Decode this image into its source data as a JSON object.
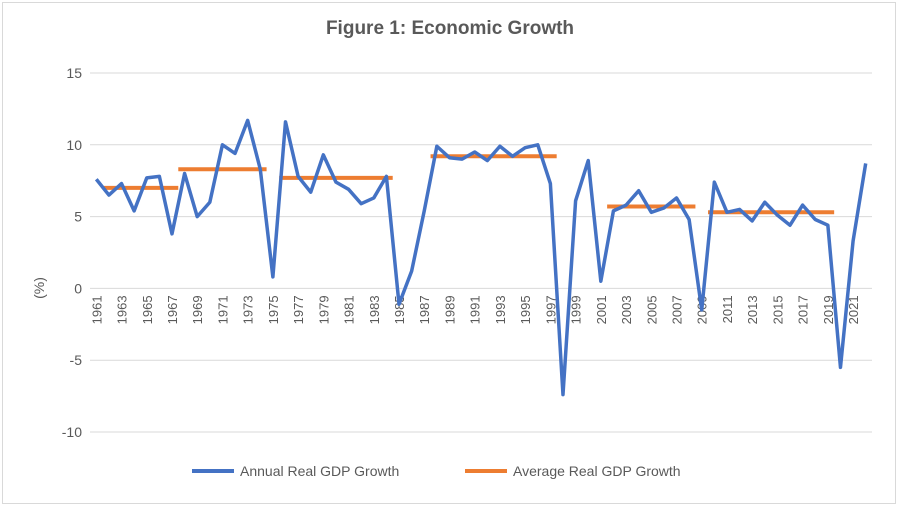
{
  "chart_data": {
    "type": "line",
    "title": "Figure 1: Economic Growth",
    "xlabel": "",
    "ylabel": "(%)",
    "ylim": [
      -10,
      15
    ],
    "yticks": [
      -10,
      -5,
      0,
      5,
      10,
      15
    ],
    "grid": true,
    "legend": "bottom",
    "x": [
      1961,
      1962,
      1963,
      1964,
      1965,
      1966,
      1967,
      1968,
      1969,
      1970,
      1971,
      1972,
      1973,
      1974,
      1975,
      1976,
      1977,
      1978,
      1979,
      1980,
      1981,
      1982,
      1983,
      1984,
      1985,
      1986,
      1987,
      1988,
      1989,
      1990,
      1991,
      1992,
      1993,
      1994,
      1995,
      1996,
      1997,
      1998,
      1999,
      2000,
      2001,
      2002,
      2003,
      2004,
      2005,
      2006,
      2007,
      2008,
      2009,
      2010,
      2011,
      2012,
      2013,
      2014,
      2015,
      2016,
      2017,
      2018,
      2019,
      2020,
      2021,
      2022
    ],
    "xticklabels": [
      "1961",
      "1963",
      "1965",
      "1967",
      "1969",
      "1971",
      "1973",
      "1975",
      "1977",
      "1979",
      "1981",
      "1983",
      "1985",
      "1987",
      "1989",
      "1991",
      "1993",
      "1995",
      "1997",
      "1999",
      "2001",
      "2003",
      "2005",
      "2007",
      "2009",
      "2011",
      "2013",
      "2015",
      "2017",
      "2019",
      "2021"
    ],
    "series": [
      {
        "name": "Annual Real GDP Growth",
        "color": "#4472c4",
        "values": [
          7.6,
          6.5,
          7.3,
          5.4,
          7.7,
          7.8,
          3.8,
          8.0,
          5.0,
          6.0,
          10.0,
          9.4,
          11.7,
          8.3,
          0.8,
          11.6,
          7.8,
          6.7,
          9.3,
          7.4,
          6.9,
          5.9,
          6.3,
          7.8,
          -1.1,
          1.2,
          5.4,
          9.9,
          9.1,
          9.0,
          9.5,
          8.9,
          9.9,
          9.2,
          9.8,
          10.0,
          7.3,
          -7.4,
          6.1,
          8.9,
          0.5,
          5.4,
          5.8,
          6.8,
          5.3,
          5.6,
          6.3,
          4.8,
          -1.5,
          7.4,
          5.3,
          5.5,
          4.7,
          6.0,
          5.1,
          4.4,
          5.8,
          4.8,
          4.4,
          -5.5,
          3.3,
          8.7
        ]
      },
      {
        "name": "Average Real GDP Growth",
        "color": "#ed7d31",
        "segments": [
          {
            "from": 1962,
            "to": 1967,
            "value": 7.0
          },
          {
            "from": 1968,
            "to": 1974,
            "value": 8.3
          },
          {
            "from": 1976,
            "to": 1984,
            "value": 7.7
          },
          {
            "from": 1988,
            "to": 1997,
            "value": 9.2
          },
          {
            "from": 2002,
            "to": 2008,
            "value": 5.7
          },
          {
            "from": 2010,
            "to": 2019,
            "value": 5.3
          }
        ]
      }
    ]
  }
}
